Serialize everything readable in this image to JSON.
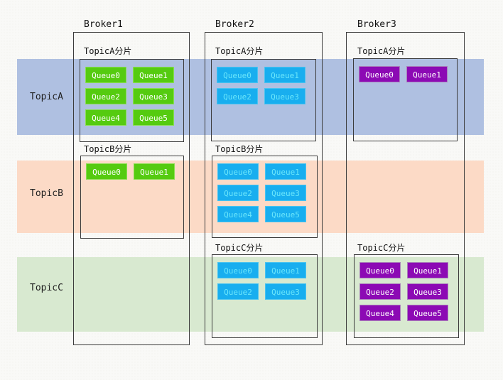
{
  "diagram": {
    "type": "rocketmq-topic-sharding-diagram"
  },
  "topics": [
    {
      "label": "TopicA",
      "band_color": "#afc0e1"
    },
    {
      "label": "TopicB",
      "band_color": "#fcdac6"
    },
    {
      "label": "TopicC",
      "band_color": "#d8e9d0"
    }
  ],
  "queue_colors": {
    "broker1_green": "#55cb10",
    "broker2_cyan": "#18aeef",
    "broker3_purple": "#8c0ab4"
  },
  "brokers": [
    {
      "label": "Broker1",
      "shards": [
        {
          "label": "TopicA分片",
          "queues": [
            "Queue0",
            "Queue1",
            "Queue2",
            "Queue3",
            "Queue4",
            "Queue5"
          ]
        },
        {
          "label": "TopicB分片",
          "queues": [
            "Queue0",
            "Queue1"
          ]
        }
      ]
    },
    {
      "label": "Broker2",
      "shards": [
        {
          "label": "TopicA分片",
          "queues": [
            "Queue0",
            "Queue1",
            "Queue2",
            "Queue3"
          ]
        },
        {
          "label": "TopicB分片",
          "queues": [
            "Queue0",
            "Queue1",
            "Queue2",
            "Queue3",
            "Queue4",
            "Queue5"
          ]
        },
        {
          "label": "TopicC分片",
          "queues": [
            "Queue0",
            "Queue1",
            "Queue2",
            "Queue3"
          ]
        }
      ]
    },
    {
      "label": "Broker3",
      "shards": [
        {
          "label": "TopicA分片",
          "queues": [
            "Queue0",
            "Queue1"
          ]
        },
        {
          "label": "TopicC分片",
          "queues": [
            "Queue0",
            "Queue1",
            "Queue2",
            "Queue3",
            "Queue4",
            "Queue5"
          ]
        }
      ]
    }
  ]
}
